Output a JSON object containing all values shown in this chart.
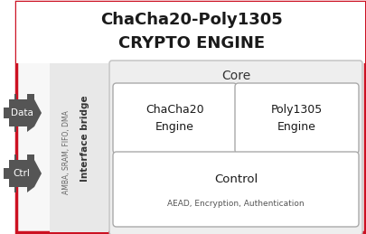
{
  "title_line1": "ChaCha20-Poly1305",
  "title_line2": "CRYPTO ENGINE",
  "bg_color": "#ffffff",
  "outer_border_color": "#cc1122",
  "inner_bg_color": "#efefef",
  "box_bg_color": "#ffffff",
  "arrow_color": "#555555",
  "label_data": "Data",
  "label_ctrl": "Ctrl",
  "interface_text": "Interface bridge",
  "interface_subtext": "AMBA, SRAM, FIFO, DMA",
  "core_label": "Core",
  "chacha_text": "ChaCha20\nEngine",
  "poly_text": "Poly1305\nEngine",
  "control_line1": "Control",
  "control_line2": "AEAD, Encryption, Authentication",
  "title_fontsize": 13,
  "label_fontsize": 7.5,
  "core_fontsize": 10,
  "engine_fontsize": 9,
  "control_fontsize": 9.5,
  "control_sub_fontsize": 6.5,
  "interface_fontsize": 7.5,
  "interface_sub_fontsize": 5.5
}
